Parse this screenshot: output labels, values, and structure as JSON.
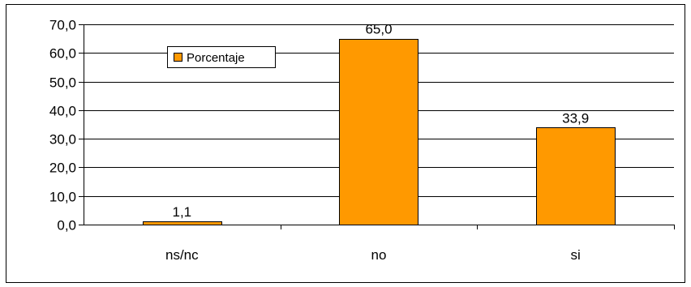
{
  "chart_data": {
    "type": "bar",
    "title": "",
    "xlabel": "",
    "ylabel": "",
    "categories": [
      "ns/nc",
      "no",
      "si"
    ],
    "series": [
      {
        "name": "Porcentaje",
        "values": [
          1.1,
          65.0,
          33.9
        ],
        "color": "#FF9900"
      }
    ],
    "data_labels": [
      "1,1",
      "65,0",
      "33,9"
    ],
    "ylim": [
      0,
      70
    ],
    "y_ticks": [
      "0,0",
      "10,0",
      "20,0",
      "30,0",
      "40,0",
      "50,0",
      "60,0",
      "70,0"
    ],
    "grid": true,
    "legend_position": "top-left"
  }
}
